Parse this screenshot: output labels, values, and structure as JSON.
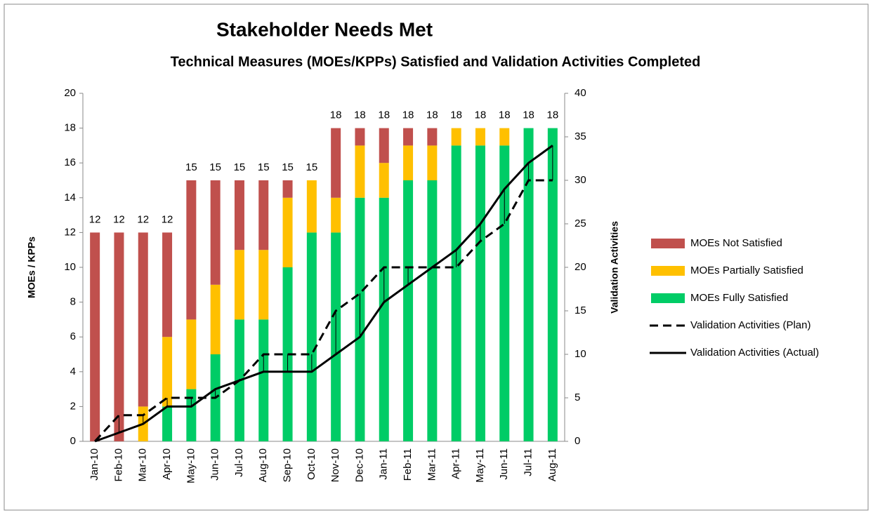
{
  "chart_data": {
    "type": "bar",
    "title": "Stakeholder Needs Met",
    "subtitle": "Technical Measures (MOEs/KPPs) Satisfied and Validation Activities Completed",
    "y_label": "MOEs / KPPs",
    "y2_label": "Validation Activities",
    "categories": [
      "Jan-10",
      "Feb-10",
      "Mar-10",
      "Apr-10",
      "May-10",
      "Jun-10",
      "Jul-10",
      "Aug-10",
      "Sep-10",
      "Oct-10",
      "Nov-10",
      "Dec-10",
      "Jan-11",
      "Feb-11",
      "Mar-11",
      "Apr-11",
      "May-11",
      "Jun-11",
      "Jul-11",
      "Aug-11"
    ],
    "series": [
      {
        "name": "MOEs Fully Satisfied",
        "type": "bar",
        "color": "#00cc66",
        "values": [
          0,
          0,
          0,
          2,
          3,
          5,
          7,
          7,
          10,
          12,
          12,
          14,
          14,
          15,
          15,
          17,
          17,
          17,
          18,
          18
        ]
      },
      {
        "name": "MOEs Partially Satisfied",
        "type": "bar",
        "color": "#ffc000",
        "values": [
          0,
          0,
          2,
          4,
          4,
          4,
          4,
          4,
          4,
          3,
          2,
          3,
          2,
          2,
          2,
          1,
          1,
          1,
          0,
          0
        ]
      },
      {
        "name": "MOEs Not Satisfied",
        "type": "bar",
        "color": "#c0504d",
        "values": [
          12,
          12,
          10,
          6,
          8,
          6,
          4,
          4,
          1,
          0,
          4,
          1,
          2,
          1,
          1,
          0,
          0,
          0,
          0,
          0
        ]
      },
      {
        "name": "Validation Activities (Plan)",
        "type": "line",
        "axis": "y2",
        "dash": true,
        "color": "#000000",
        "values": [
          0,
          3,
          3,
          5,
          5,
          5,
          7,
          10,
          10,
          10,
          15,
          17,
          20,
          20,
          20,
          20,
          23,
          25,
          30,
          30
        ]
      },
      {
        "name": "Validation Activities (Actual)",
        "type": "line",
        "axis": "y2",
        "dash": false,
        "color": "#000000",
        "values": [
          0,
          1,
          2,
          4,
          4,
          6,
          7,
          8,
          8,
          8,
          10,
          12,
          16,
          18,
          20,
          22,
          25,
          29,
          32,
          34
        ]
      }
    ],
    "totals": [
      12,
      12,
      12,
      12,
      15,
      15,
      15,
      15,
      15,
      15,
      18,
      18,
      18,
      18,
      18,
      18,
      18,
      18,
      18,
      18
    ],
    "ylim": [
      0,
      20
    ],
    "yticks": [
      0,
      2,
      4,
      6,
      8,
      10,
      12,
      14,
      16,
      18,
      20
    ],
    "y2lim": [
      0,
      40
    ],
    "y2ticks": [
      0,
      5,
      10,
      15,
      20,
      25,
      30,
      35,
      40
    ],
    "legend": "right",
    "legend_reversed": true,
    "drop_lines": true
  }
}
